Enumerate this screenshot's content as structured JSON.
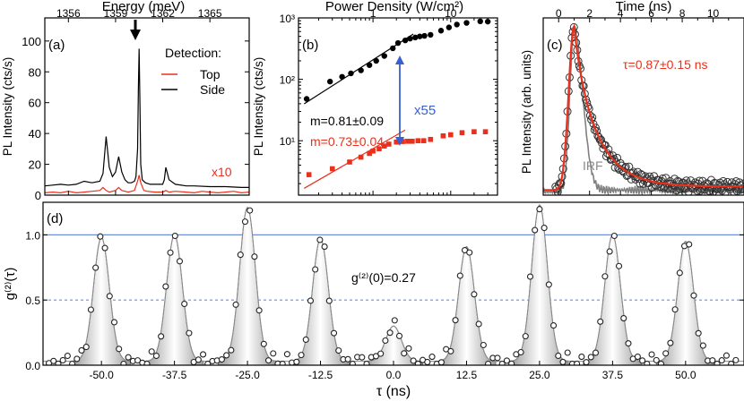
{
  "chart_data": [
    {
      "panel": "(a)",
      "type": "line",
      "title": "Energy (meV)",
      "xlabel": "Energy (meV)",
      "ylabel": "PL Intensity (cts/s)",
      "xlim": [
        1354.5,
        1367.5
      ],
      "ylim": [
        0,
        115
      ],
      "xticks": [
        1356,
        1359,
        1362,
        1365
      ],
      "yticks": [
        0,
        20,
        40,
        60,
        80,
        100
      ],
      "legend_title": "Detection:",
      "annotation": "x10",
      "series": [
        {
          "name": "Top",
          "color": "#e8301c",
          "x": [
            1354.5,
            1355.0,
            1355.5,
            1356.0,
            1356.5,
            1357.0,
            1357.5,
            1358.0,
            1358.2,
            1358.4,
            1358.6,
            1358.8,
            1359.0,
            1359.2,
            1359.4,
            1359.6,
            1359.8,
            1360.0,
            1360.2,
            1360.4,
            1360.5,
            1360.6,
            1360.8,
            1361.0,
            1361.5,
            1362.0,
            1362.2,
            1362.4,
            1362.8,
            1363.5,
            1364.0,
            1364.5,
            1365.0,
            1365.5,
            1366.0,
            1366.5,
            1367.0,
            1367.5
          ],
          "values": [
            1.5,
            2,
            1.5,
            2.5,
            1.5,
            2,
            2.5,
            3,
            5,
            3,
            2,
            2.5,
            3,
            5,
            3,
            2.5,
            2,
            2.5,
            3,
            9,
            13,
            8,
            3,
            2.5,
            2,
            2,
            3,
            2,
            2.5,
            2,
            1.5,
            2.5,
            2,
            1.5,
            2,
            2.5,
            1.5,
            2
          ]
        },
        {
          "name": "Side",
          "color": "#000000",
          "x": [
            1354.5,
            1355.0,
            1355.5,
            1356.0,
            1356.5,
            1357.0,
            1357.5,
            1358.0,
            1358.2,
            1358.4,
            1358.6,
            1358.8,
            1359.0,
            1359.2,
            1359.4,
            1359.6,
            1359.8,
            1360.0,
            1360.2,
            1360.3,
            1360.4,
            1360.45,
            1360.5,
            1360.55,
            1360.6,
            1360.7,
            1360.9,
            1361.2,
            1361.5,
            1362.0,
            1362.1,
            1362.2,
            1362.4,
            1362.8,
            1363.5,
            1364.0,
            1365.0,
            1366.0,
            1367.0,
            1367.5
          ],
          "values": [
            6,
            6.5,
            7,
            6.5,
            7,
            9,
            8,
            9,
            14,
            38,
            18,
            12,
            15,
            25,
            15,
            10,
            8,
            8,
            9,
            12,
            30,
            70,
            95,
            60,
            20,
            10,
            8,
            7,
            7,
            7,
            10,
            18,
            10,
            7,
            6,
            6,
            5.5,
            5.5,
            5,
            5
          ]
        }
      ]
    },
    {
      "panel": "(b)",
      "type": "scatter",
      "title": "Power Density (W/cm²)",
      "xlabel": "Power Density (W/cm²)",
      "ylabel": "PL Intensity (cts/s)",
      "xscale": "log",
      "yscale": "log",
      "xlim": [
        0.11,
        40
      ],
      "ylim": [
        1.3,
        1000
      ],
      "xticks": [
        1,
        10
      ],
      "yticks": [
        10,
        100,
        1000
      ],
      "ytick_labels": [
        "10¹",
        "10²",
        "10³"
      ],
      "annotation": "x55",
      "series": [
        {
          "name": "Side",
          "color": "#000000",
          "fit_label": "m=0.81±0.09",
          "fit_slope": 0.81,
          "x": [
            0.14,
            0.28,
            0.4,
            0.52,
            0.7,
            0.9,
            1.1,
            1.4,
            1.8,
            2.1,
            2.6,
            3.0,
            3.5,
            4.0,
            4.6,
            5.5,
            7.5,
            9.5,
            12,
            16,
            24,
            30
          ],
          "values": [
            48,
            92,
            110,
            125,
            140,
            170,
            200,
            240,
            320,
            390,
            430,
            460,
            480,
            500,
            510,
            530,
            620,
            700,
            780,
            830,
            880,
            870
          ]
        },
        {
          "name": "Top",
          "color": "#e8301c",
          "fit_label": "m=0.73±0.04",
          "fit_slope": 0.73,
          "x": [
            0.15,
            0.3,
            0.5,
            0.7,
            0.9,
            1.0,
            1.2,
            1.4,
            1.6,
            2.0,
            2.4,
            2.8,
            3.2,
            3.8,
            4.5,
            5.5,
            8,
            10,
            14,
            20,
            28
          ],
          "values": [
            2.8,
            3.5,
            4.5,
            5.4,
            6.2,
            6.8,
            7.4,
            8.2,
            8.8,
            9.5,
            9.7,
            9.8,
            9.8,
            10,
            10,
            10.5,
            12,
            12.5,
            13.5,
            14,
            14
          ]
        }
      ]
    },
    {
      "panel": "(c)",
      "type": "scatter",
      "title": "Time (ns)",
      "xlabel": "Time (ns)",
      "ylabel": "PL Intensity (arb. units)",
      "xlim": [
        -1,
        12
      ],
      "ylim": [
        0,
        1.05
      ],
      "xticks": [
        0,
        2,
        4,
        6,
        8,
        10
      ],
      "annotation": "τ=0.87±0.15 ns",
      "irf_label": "IRF",
      "series": [
        {
          "name": "Data",
          "color": "#000000",
          "marker": "open-circle"
        },
        {
          "name": "Fit",
          "color": "#e8301c",
          "decay_ns": 0.87
        },
        {
          "name": "IRF",
          "color": "#808080"
        }
      ]
    },
    {
      "panel": "(d)",
      "type": "scatter",
      "xlabel": "τ (ns)",
      "ylabel": "g⁽²⁾(τ)",
      "xlim": [
        -60,
        60
      ],
      "ylim": [
        0,
        1.25
      ],
      "xticks": [
        -50.0,
        -37.5,
        -25.0,
        -12.5,
        0.0,
        12.5,
        25.0,
        37.5,
        50.0
      ],
      "xtick_labels": [
        "-50.0",
        "-37.5",
        "-25.0",
        "-12.5",
        "0.0",
        "12.5",
        "25.0",
        "37.5",
        "50.0"
      ],
      "yticks": [
        0.0,
        0.5,
        1.0
      ],
      "ytick_labels": [
        "0.0",
        "0.5",
        "1.0"
      ],
      "reference_lines": [
        1.0,
        0.5
      ],
      "annotation": "g⁽²⁾(0)=0.27",
      "peak_positions": [
        -50.0,
        -37.5,
        -25.0,
        -12.5,
        0.0,
        12.5,
        25.0,
        37.5,
        50.0
      ],
      "peak_heights": [
        0.95,
        0.97,
        1.18,
        0.94,
        0.27,
        0.88,
        1.2,
        0.97,
        0.92
      ]
    }
  ]
}
